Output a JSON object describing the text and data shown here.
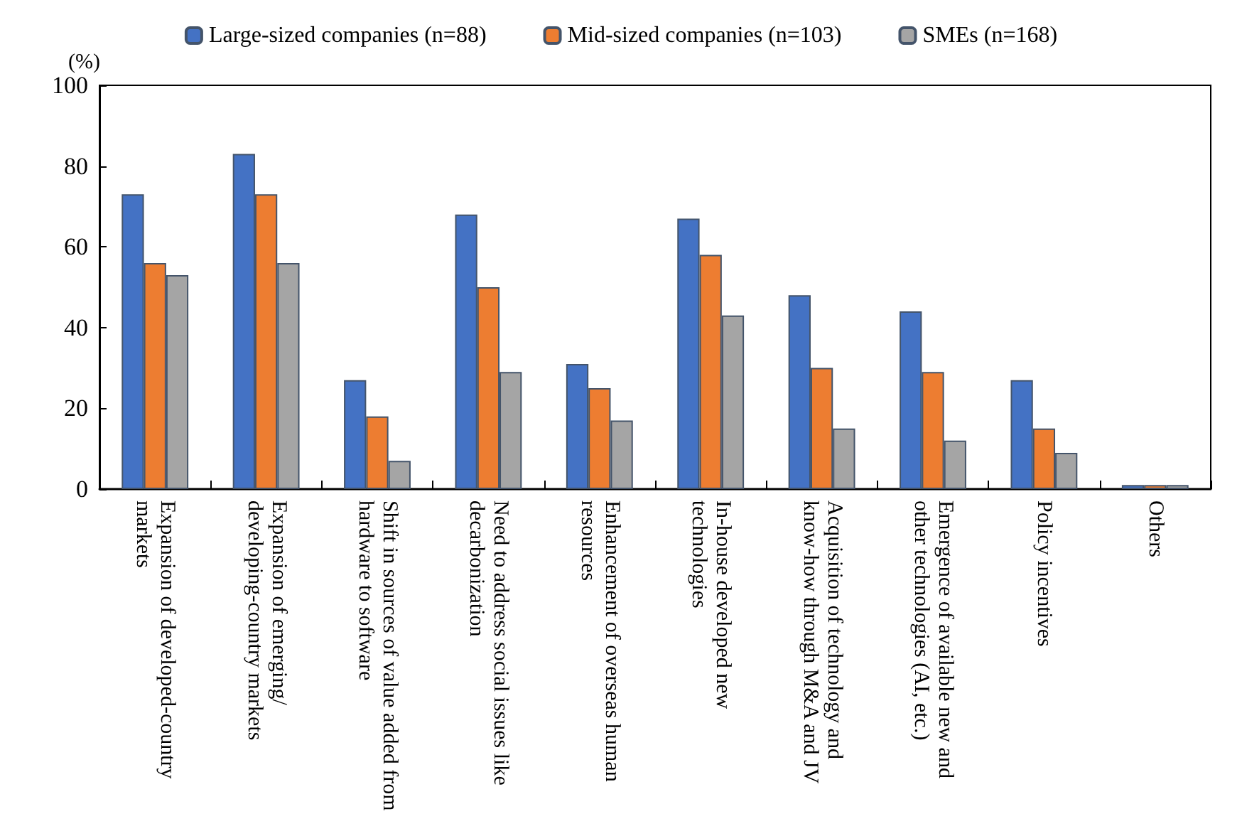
{
  "chart_data": {
    "type": "bar",
    "ylabel": "(%)",
    "categories": [
      "Expansion of developed-country markets",
      "Expansion of emerging/ developing-country markets",
      "Shift in sources of value added from hardware to software",
      "Need to address social issues like decarbonization",
      "Enhancement of overseas human resources",
      "In-house developed new technologies",
      "Acquisition of technology and know-how through M&A and JV",
      "Emergence of available new and other technologies (AI, etc.)",
      "Policy incentives",
      "Others"
    ],
    "series": [
      {
        "name": "Large-sized companies (n=88)",
        "color": "#4472c4",
        "values": [
          73,
          83,
          27,
          68,
          31,
          67,
          48,
          44,
          27,
          1
        ]
      },
      {
        "name": "Mid-sized companies (n=103)",
        "color": "#ed7d31",
        "values": [
          56,
          73,
          18,
          50,
          25,
          58,
          30,
          29,
          15,
          1
        ]
      },
      {
        "name": "SMEs (n=168)",
        "color": "#a5a5a5",
        "values": [
          53,
          56,
          7,
          29,
          17,
          43,
          15,
          12,
          9,
          1
        ]
      }
    ],
    "ylim": [
      0,
      100
    ],
    "yticks": [
      0,
      20,
      40,
      60,
      80,
      100
    ],
    "grid": false,
    "legend": "top"
  }
}
